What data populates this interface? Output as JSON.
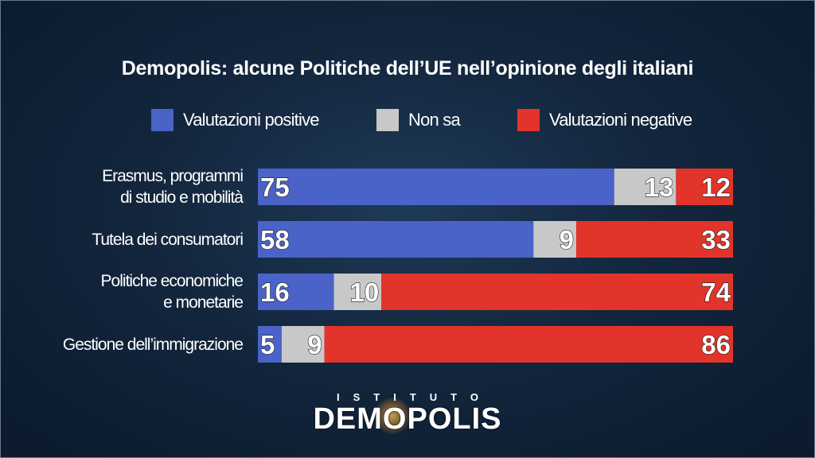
{
  "chart_data": {
    "type": "bar",
    "orientation": "horizontal",
    "stacked": true,
    "title": "Demopolis: alcune Politiche dell’UE nell’opinione degli italiani",
    "categories": [
      [
        "Erasmus, programmi",
        "di studio e mobilità"
      ],
      [
        "Tutela dei consumatori"
      ],
      [
        "Politiche economiche",
        "e monetarie"
      ],
      [
        "Gestione dell’immigrazione"
      ]
    ],
    "series": [
      {
        "name": "Valutazioni positive",
        "color": "#4a63c8",
        "values": [
          75,
          58,
          16,
          5
        ]
      },
      {
        "name": "Non sa",
        "color": "#c8c8c8",
        "values": [
          13,
          9,
          10,
          9
        ]
      },
      {
        "name": "Valutazioni negative",
        "color": "#e2342a",
        "values": [
          12,
          33,
          74,
          86
        ]
      }
    ],
    "legend_position": "top",
    "xlim": [
      0,
      100
    ],
    "grid": false
  },
  "logo": {
    "subtitle": "ISTITUTO",
    "name": "DEMOPOLIS"
  }
}
